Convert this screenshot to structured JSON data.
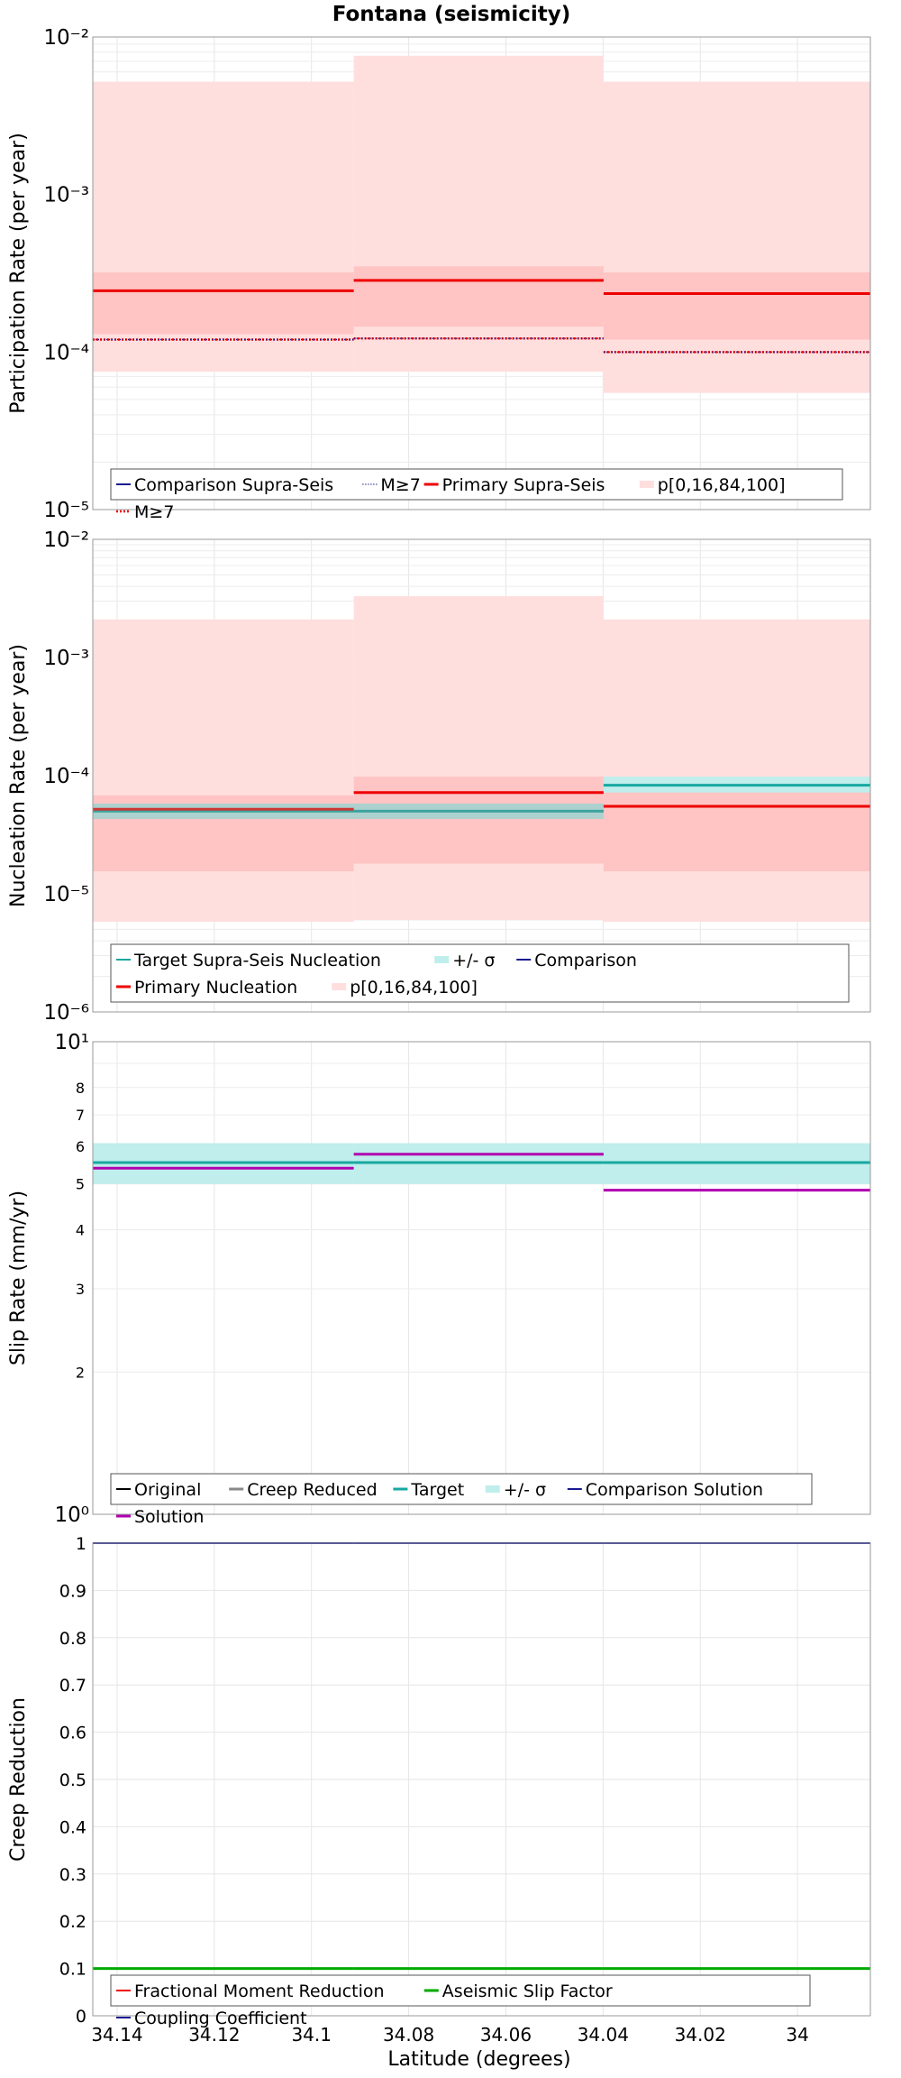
{
  "figure": {
    "title": "Fontana (seismicity)",
    "xlabel": "Latitude (degrees)"
  },
  "colors": {
    "red": "#ee0000",
    "pink_outer": "#ffdede",
    "pink_inner": "#ffc4c4",
    "teal": "#16a8a0",
    "teal_band": "#bfeeec",
    "purple": "#b000b0",
    "green": "#00aa00",
    "navy": "#1a1a90",
    "gray": "#888888"
  },
  "chart_data": [
    {
      "type": "line",
      "id": "participation",
      "ylabel": "Participation Rate (per year)",
      "yscale": "log",
      "ylim": [
        1e-05,
        0.01
      ],
      "x_ticks": [
        34.14,
        34.12,
        34.1,
        34.08,
        34.06,
        34.04,
        34.02,
        34
      ],
      "xlim": [
        34.145,
        33.985
      ],
      "segments": [
        34.145,
        34.0913,
        34.0399,
        33.985
      ],
      "series": [
        {
          "name": "p[0,16,84,100]",
          "kind": "band_outer",
          "low": [
            7.5e-05,
            7.5e-05,
            5.5e-05
          ],
          "high": [
            0.0052,
            0.0076,
            0.0052
          ]
        },
        {
          "name": "p[0,16,84,100]",
          "kind": "band_inner",
          "low": [
            0.00013,
            0.000145,
            0.00012
          ],
          "high": [
            0.00032,
            0.00035,
            0.00032
          ]
        },
        {
          "name": "Primary Supra-Seis",
          "kind": "step",
          "values": [
            0.000245,
            0.000285,
            0.000235
          ]
        },
        {
          "name": "M≥7",
          "kind": "step_dotted_red",
          "values": [
            0.00012,
            0.000122,
            0.0001
          ]
        },
        {
          "name": "M≥7",
          "kind": "step_dotted_blue",
          "values": [
            0.00012,
            0.000122,
            0.0001
          ]
        }
      ],
      "legend": [
        "Comparison Supra-Seis",
        "M≥7",
        "Primary Supra-Seis",
        "p[0,16,84,100]",
        "M≥7"
      ]
    },
    {
      "type": "line",
      "id": "nucleation",
      "ylabel": "Nucleation Rate (per year)",
      "yscale": "log",
      "ylim": [
        1e-06,
        0.01
      ],
      "segments": [
        34.145,
        34.0913,
        34.0399,
        33.985
      ],
      "series": [
        {
          "name": "p[0,16,84,100]",
          "kind": "band_outer",
          "low": [
            5.8e-06,
            6e-06,
            5.8e-06
          ],
          "high": [
            0.0021,
            0.0033,
            0.0021
          ]
        },
        {
          "name": "p[0,16,84,100]",
          "kind": "band_inner",
          "low": [
            1.55e-05,
            1.8e-05,
            1.55e-05
          ],
          "high": [
            6.8e-05,
            9.8e-05,
            7.5e-05
          ]
        },
        {
          "name": "+/- σ",
          "kind": "teal_band",
          "low": [
            4.3e-05,
            4.3e-05,
            7.2e-05
          ],
          "high": [
            5.8e-05,
            5.8e-05,
            9.8e-05
          ]
        },
        {
          "name": "Target Supra-Seis Nucleation",
          "kind": "teal_step",
          "values": [
            5e-05,
            5e-05,
            8.3e-05
          ]
        },
        {
          "name": "Primary Nucleation",
          "kind": "step",
          "values": [
            5.2e-05,
            7.2e-05,
            5.5e-05
          ]
        }
      ],
      "legend": [
        "Target Supra-Seis Nucleation",
        "+/- σ",
        "Comparison",
        "Primary Nucleation",
        "p[0,16,84,100]"
      ]
    },
    {
      "type": "line",
      "id": "sliprate",
      "ylabel": "Slip Rate (mm/yr)",
      "yscale": "log",
      "ylim": [
        1,
        10
      ],
      "y_tick_labels": [
        "10⁰",
        "10¹"
      ],
      "y_minor_labels": [
        2,
        3,
        4,
        5,
        6,
        7,
        8
      ],
      "segments": [
        34.145,
        34.0913,
        34.0399,
        33.985
      ],
      "series": [
        {
          "name": "+/- σ",
          "kind": "teal_band",
          "low": [
            5.0,
            5.0,
            5.0
          ],
          "high": [
            6.1,
            6.1,
            6.1
          ]
        },
        {
          "name": "Target",
          "kind": "teal_step",
          "values": [
            5.55,
            5.55,
            5.55
          ]
        },
        {
          "name": "Solution",
          "kind": "purple_step",
          "values": [
            5.4,
            5.78,
            4.85
          ]
        }
      ],
      "legend": [
        "Original",
        "Creep Reduced",
        "Target",
        "+/- σ",
        "Comparison Solution",
        "Solution"
      ]
    },
    {
      "type": "line",
      "id": "creep",
      "ylabel": "Creep Reduction",
      "yscale": "linear",
      "ylim": [
        0,
        1
      ],
      "y_ticks": [
        0,
        0.1,
        0.2,
        0.3,
        0.4,
        0.5,
        0.6,
        0.7,
        0.8,
        0.9,
        1
      ],
      "segments": [
        34.145,
        34.0913,
        34.0399,
        33.985
      ],
      "series": [
        {
          "name": "Coupling Coefficient",
          "kind": "navy_step",
          "values": [
            1,
            1,
            1
          ]
        },
        {
          "name": "Aseismic Slip Factor",
          "kind": "green_step",
          "values": [
            0.1,
            0.1,
            0.1
          ]
        }
      ],
      "legend": [
        "Fractional Moment Reduction",
        "Aseismic Slip Factor",
        "Coupling Coefficient"
      ]
    }
  ]
}
